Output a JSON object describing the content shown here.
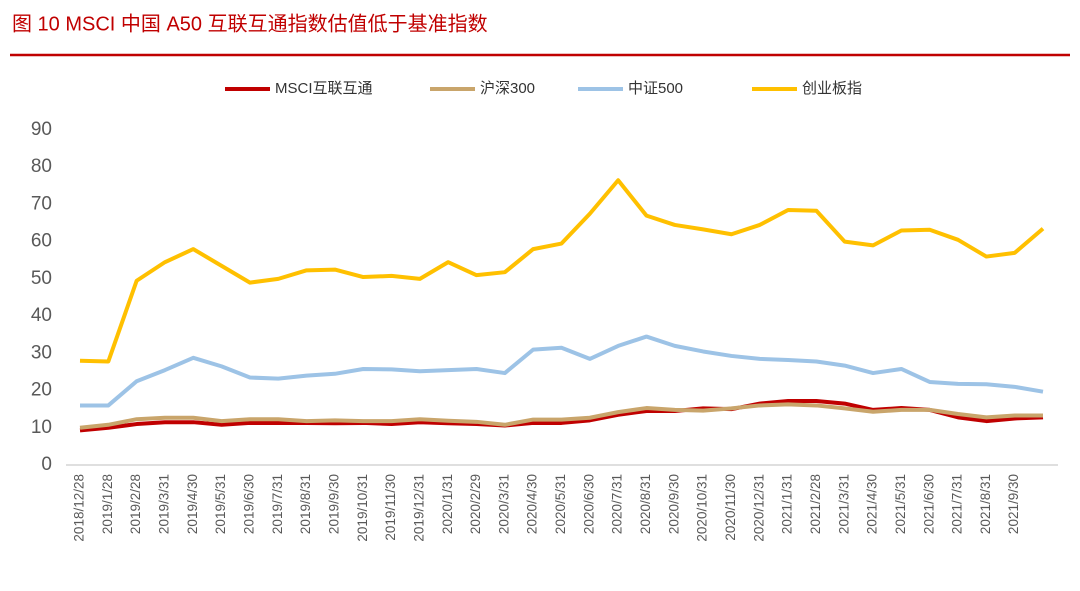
{
  "chart_data": {
    "type": "line",
    "title": "图 10 MSCI 中国 A50 互联互通指数估值低于基准指数",
    "categories": [
      "2018/12/28",
      "2019/1/28",
      "2019/2/28",
      "2019/3/31",
      "2019/4/30",
      "2019/5/31",
      "2019/6/30",
      "2019/7/31",
      "2019/8/31",
      "2019/9/30",
      "2019/10/31",
      "2019/11/30",
      "2019/12/31",
      "2020/1/31",
      "2020/2/29",
      "2020/3/31",
      "2020/4/30",
      "2020/5/31",
      "2020/6/30",
      "2020/7/31",
      "2020/8/31",
      "2020/9/30",
      "2020/10/31",
      "2020/11/30",
      "2020/12/31",
      "2021/1/31",
      "2021/2/28",
      "2021/3/31",
      "2021/4/30",
      "2021/5/31",
      "2021/6/30",
      "2021/7/31",
      "2021/8/31",
      "2021/9/30",
      null
    ],
    "series": [
      {
        "name": "MSCI互联互通",
        "color": "#c00000",
        "values": [
          9.3,
          10,
          11,
          11.5,
          11.5,
          10.8,
          11.3,
          11.3,
          11.3,
          11.2,
          11.3,
          11,
          11.5,
          11.2,
          11,
          10.6,
          11.3,
          11.3,
          12,
          13.5,
          14.5,
          14.5,
          15.2,
          15,
          16.5,
          17.2,
          17.2,
          16.5,
          14.8,
          15.3,
          14.8,
          12.8,
          11.8,
          12.5,
          12.8
        ]
      },
      {
        "name": "沪深300",
        "color": "#c9a56b",
        "values": [
          10,
          10.8,
          12.3,
          12.7,
          12.7,
          11.8,
          12.3,
          12.3,
          11.8,
          12,
          11.8,
          11.8,
          12.3,
          11.9,
          11.6,
          10.8,
          12.2,
          12.2,
          12.7,
          14.2,
          15.3,
          14.8,
          14.6,
          15.2,
          16,
          16.3,
          16,
          15.2,
          14.3,
          14.8,
          14.8,
          13.7,
          12.8,
          13.3,
          13.3
        ]
      },
      {
        "name": "中证500",
        "color": "#9dc3e6",
        "values": [
          16,
          16,
          22.5,
          25.5,
          28.8,
          26.5,
          23.5,
          23.2,
          24,
          24.5,
          25.8,
          25.7,
          25.2,
          25.5,
          25.8,
          24.7,
          31,
          31.5,
          28.5,
          32,
          34.5,
          32,
          30.5,
          29.3,
          28.5,
          28.2,
          27.8,
          26.7,
          24.7,
          25.8,
          22.3,
          21.8,
          21.7,
          21,
          19.7
        ]
      },
      {
        "name": "创业板指",
        "color": "#ffc000",
        "values": [
          28,
          27.8,
          49.5,
          54.5,
          58,
          53.5,
          49,
          50,
          52.3,
          52.5,
          50.5,
          50.8,
          50,
          54.5,
          51,
          51.8,
          58,
          59.5,
          67.5,
          76.5,
          67,
          64.5,
          63.3,
          62,
          64.5,
          68.5,
          68.3,
          60,
          59,
          63,
          63.2,
          60.5,
          56,
          57,
          63.5
        ]
      }
    ],
    "ylim": [
      0,
      90
    ],
    "yticks": [
      0,
      10,
      20,
      30,
      40,
      50,
      60,
      70,
      80,
      90
    ],
    "legend": "top"
  }
}
